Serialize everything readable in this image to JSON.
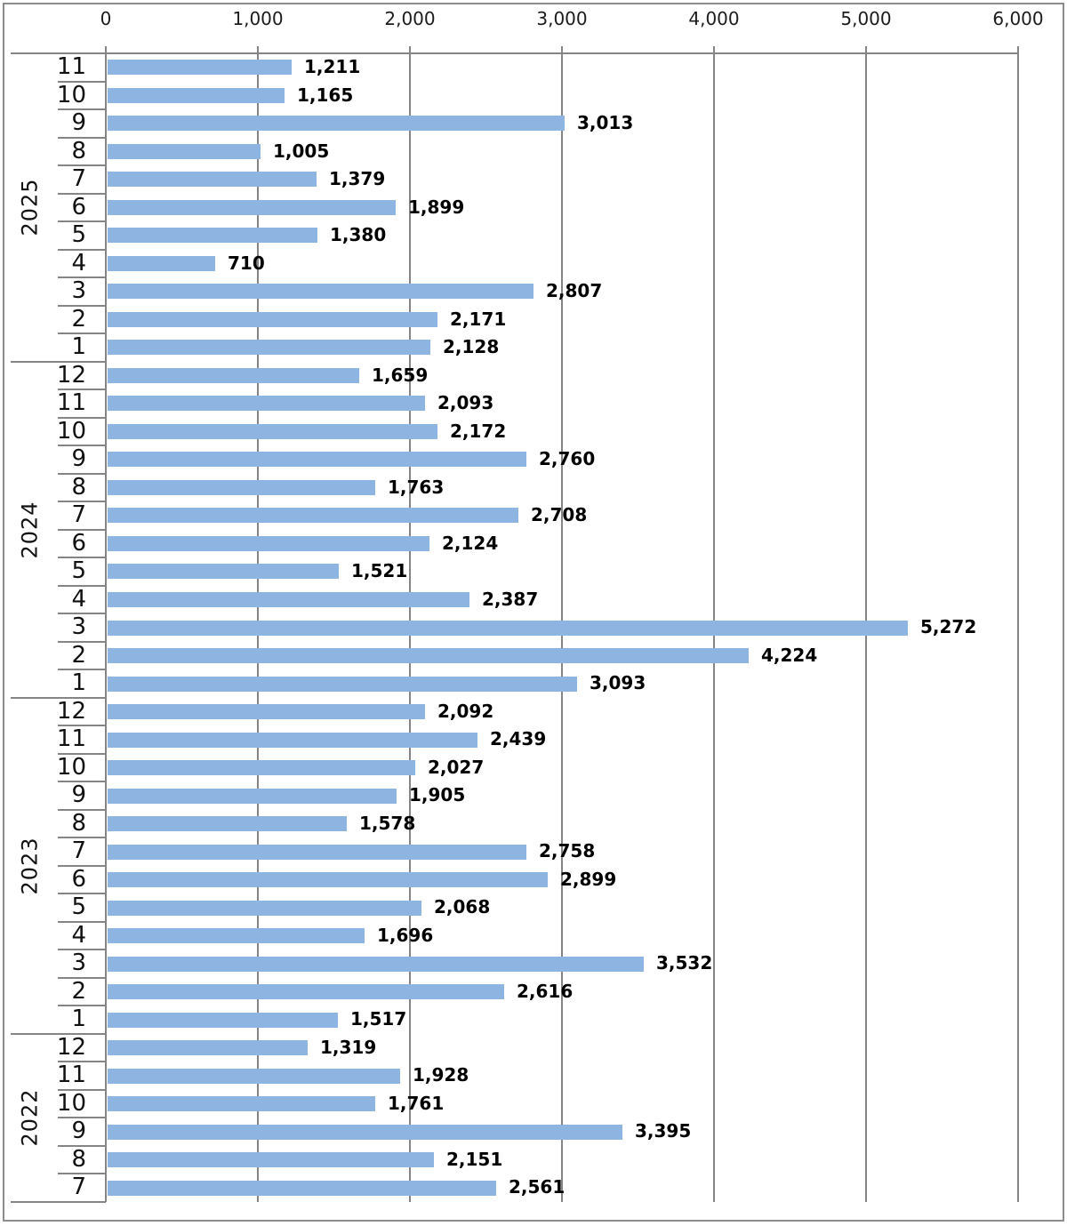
{
  "chart_data": {
    "type": "bar",
    "orientation": "horizontal",
    "title": "",
    "xlabel": "",
    "ylabel": "",
    "xlim": [
      0,
      6000
    ],
    "x_ticks": [
      0,
      1000,
      2000,
      3000,
      4000,
      5000,
      6000
    ],
    "x_tick_labels": [
      "0",
      "1,000",
      "2,000",
      "3,000",
      "4,000",
      "5,000",
      "6,000"
    ],
    "grid": true,
    "legend": "none",
    "bar_color": "#8EB4E2",
    "line_color": "#858585",
    "axis_text_color": "#1c1c1c",
    "value_label_color": "#000000",
    "groups": [
      {
        "year": "2025",
        "months": [
          {
            "month": "11",
            "value": 1211,
            "label": "1,211"
          },
          {
            "month": "10",
            "value": 1165,
            "label": "1,165"
          },
          {
            "month": "9",
            "value": 3013,
            "label": "3,013"
          },
          {
            "month": "8",
            "value": 1005,
            "label": "1,005"
          },
          {
            "month": "7",
            "value": 1379,
            "label": "1,379"
          },
          {
            "month": "6",
            "value": 1899,
            "label": "1,899"
          },
          {
            "month": "5",
            "value": 1380,
            "label": "1,380"
          },
          {
            "month": "4",
            "value": 710,
            "label": "710"
          },
          {
            "month": "3",
            "value": 2807,
            "label": "2,807"
          },
          {
            "month": "2",
            "value": 2171,
            "label": "2,171"
          },
          {
            "month": "1",
            "value": 2128,
            "label": "2,128"
          }
        ]
      },
      {
        "year": "2024",
        "months": [
          {
            "month": "12",
            "value": 1659,
            "label": "1,659"
          },
          {
            "month": "11",
            "value": 2093,
            "label": "2,093"
          },
          {
            "month": "10",
            "value": 2172,
            "label": "2,172"
          },
          {
            "month": "9",
            "value": 2760,
            "label": "2,760"
          },
          {
            "month": "8",
            "value": 1763,
            "label": "1,763"
          },
          {
            "month": "7",
            "value": 2708,
            "label": "2,708"
          },
          {
            "month": "6",
            "value": 2124,
            "label": "2,124"
          },
          {
            "month": "5",
            "value": 1521,
            "label": "1,521"
          },
          {
            "month": "4",
            "value": 2387,
            "label": "2,387"
          },
          {
            "month": "3",
            "value": 5272,
            "label": "5,272"
          },
          {
            "month": "2",
            "value": 4224,
            "label": "4,224"
          },
          {
            "month": "1",
            "value": 3093,
            "label": "3,093"
          }
        ]
      },
      {
        "year": "2023",
        "months": [
          {
            "month": "12",
            "value": 2092,
            "label": "2,092"
          },
          {
            "month": "11",
            "value": 2439,
            "label": "2,439"
          },
          {
            "month": "10",
            "value": 2027,
            "label": "2,027"
          },
          {
            "month": "9",
            "value": 1905,
            "label": "1,905"
          },
          {
            "month": "8",
            "value": 1578,
            "label": "1,578"
          },
          {
            "month": "7",
            "value": 2758,
            "label": "2,758"
          },
          {
            "month": "6",
            "value": 2899,
            "label": "2,899"
          },
          {
            "month": "5",
            "value": 2068,
            "label": "2,068"
          },
          {
            "month": "4",
            "value": 1696,
            "label": "1,696"
          },
          {
            "month": "3",
            "value": 3532,
            "label": "3,532"
          },
          {
            "month": "2",
            "value": 2616,
            "label": "2,616"
          },
          {
            "month": "1",
            "value": 1517,
            "label": "1,517"
          }
        ]
      },
      {
        "year": "2022",
        "months": [
          {
            "month": "12",
            "value": 1319,
            "label": "1,319"
          },
          {
            "month": "11",
            "value": 1928,
            "label": "1,928"
          },
          {
            "month": "10",
            "value": 1761,
            "label": "1,761"
          },
          {
            "month": "9",
            "value": 3395,
            "label": "3,395"
          },
          {
            "month": "8",
            "value": 2151,
            "label": "2,151"
          },
          {
            "month": "7",
            "value": 2561,
            "label": "2,561"
          }
        ]
      }
    ]
  }
}
